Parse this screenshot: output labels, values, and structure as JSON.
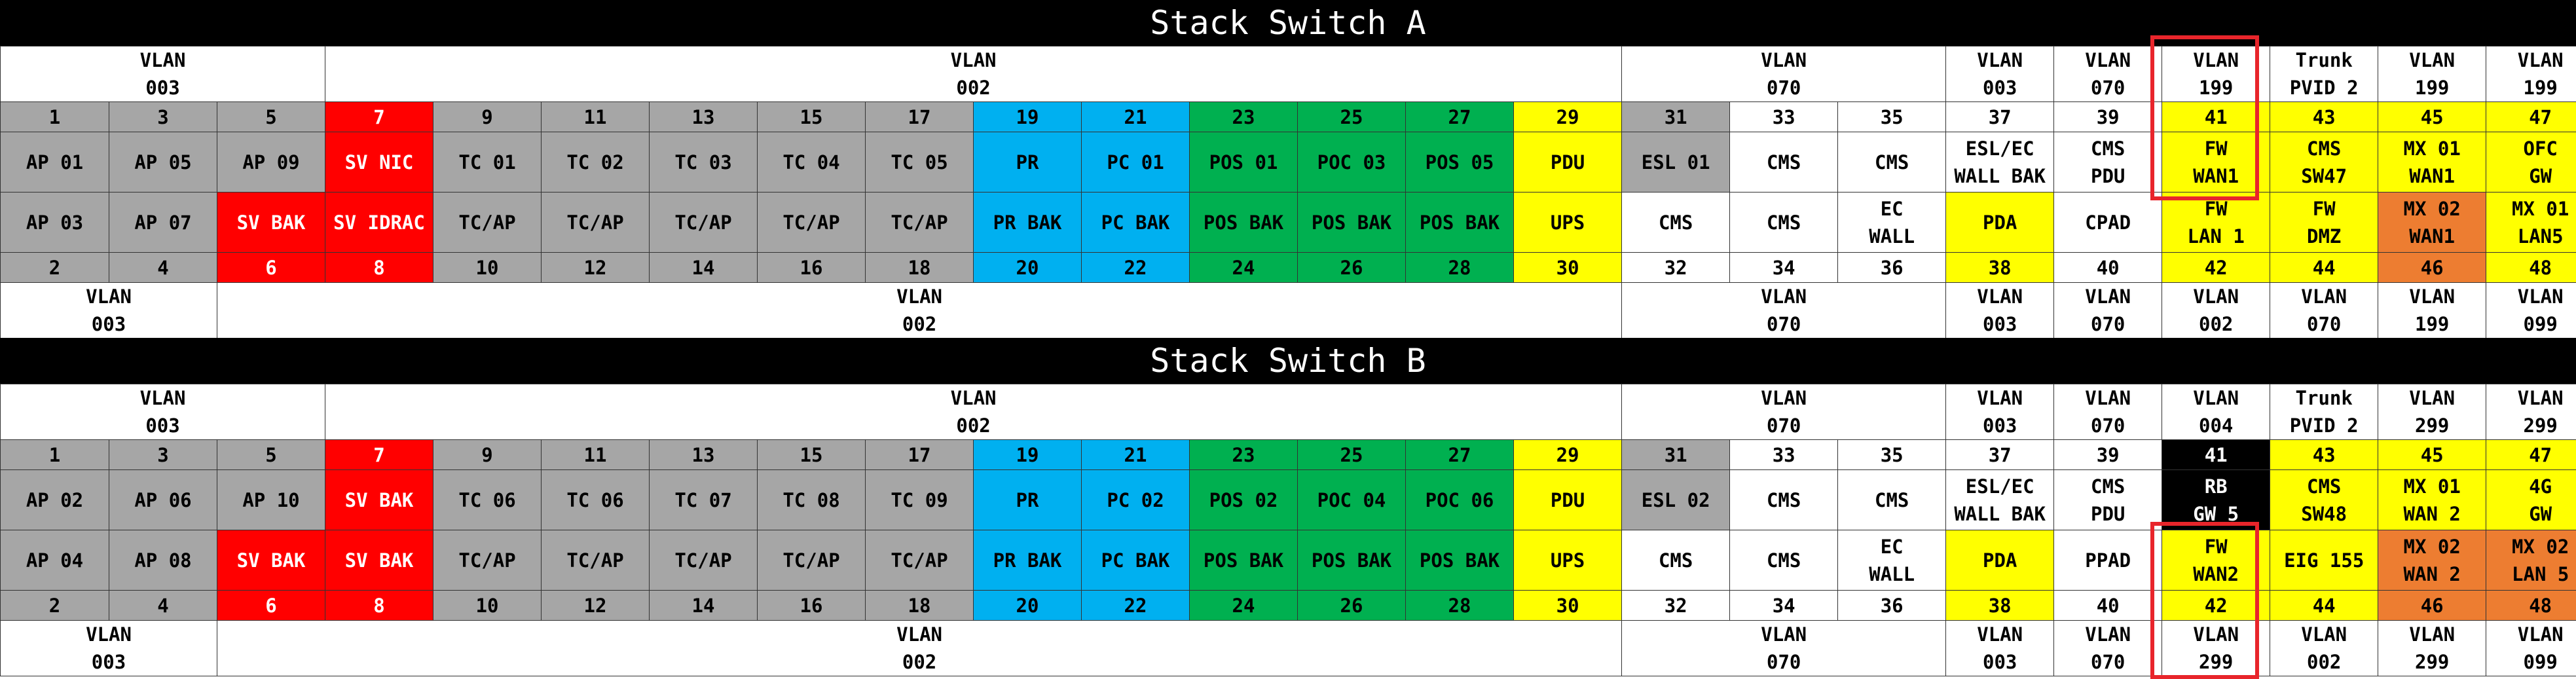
{
  "colors": {
    "gray": "#a6a6a6",
    "red": "#ff0000",
    "blue": "#00b0f0",
    "green": "#00b050",
    "yellow": "#ffff00",
    "orange": "#ed7d31",
    "white": "#ffffff",
    "black": "#000000",
    "highlight": "#e8252b"
  },
  "switches": [
    {
      "title": "Stack Switch A",
      "top_vlans": [
        {
          "span": 3,
          "text": "VLAN\n003"
        },
        {
          "span": 12,
          "text": "VLAN\n002"
        },
        {
          "span": 3,
          "text": "VLAN\n070"
        },
        {
          "span": 1,
          "text": "VLAN\n003"
        },
        {
          "span": 1,
          "text": "VLAN\n070"
        },
        {
          "span": 1,
          "text": "VLAN\n199"
        },
        {
          "span": 1,
          "text": "Trunk\nPVID 2"
        },
        {
          "span": 1,
          "text": "VLAN\n199"
        },
        {
          "span": 1,
          "text": "VLAN\n199"
        }
      ],
      "odd_ports": [
        {
          "t": "1",
          "c": "gray"
        },
        {
          "t": "3",
          "c": "gray"
        },
        {
          "t": "5",
          "c": "gray"
        },
        {
          "t": "7",
          "c": "red"
        },
        {
          "t": "9",
          "c": "gray"
        },
        {
          "t": "11",
          "c": "gray"
        },
        {
          "t": "13",
          "c": "gray"
        },
        {
          "t": "15",
          "c": "gray"
        },
        {
          "t": "17",
          "c": "gray"
        },
        {
          "t": "19",
          "c": "blue"
        },
        {
          "t": "21",
          "c": "blue"
        },
        {
          "t": "23",
          "c": "green"
        },
        {
          "t": "25",
          "c": "green"
        },
        {
          "t": "27",
          "c": "green"
        },
        {
          "t": "29",
          "c": "yellow"
        },
        {
          "t": "31",
          "c": "gray"
        },
        {
          "t": "33",
          "c": "white"
        },
        {
          "t": "35",
          "c": "white"
        },
        {
          "t": "37",
          "c": "white"
        },
        {
          "t": "39",
          "c": "white"
        },
        {
          "t": "41",
          "c": "yellow"
        },
        {
          "t": "43",
          "c": "yellow"
        },
        {
          "t": "45",
          "c": "yellow"
        },
        {
          "t": "47",
          "c": "yellow"
        }
      ],
      "odd_labels": [
        {
          "t": "AP 01",
          "c": "gray"
        },
        {
          "t": "AP 05",
          "c": "gray"
        },
        {
          "t": "AP 09",
          "c": "gray"
        },
        {
          "t": "SV NIC",
          "c": "red"
        },
        {
          "t": "TC 01",
          "c": "gray"
        },
        {
          "t": "TC 02",
          "c": "gray"
        },
        {
          "t": "TC 03",
          "c": "gray"
        },
        {
          "t": "TC 04",
          "c": "gray"
        },
        {
          "t": "TC 05",
          "c": "gray"
        },
        {
          "t": "PR",
          "c": "blue"
        },
        {
          "t": "PC 01",
          "c": "blue"
        },
        {
          "t": "POS 01",
          "c": "green"
        },
        {
          "t": "POC 03",
          "c": "green"
        },
        {
          "t": "POS 05",
          "c": "green"
        },
        {
          "t": "PDU",
          "c": "yellow"
        },
        {
          "t": "ESL 01",
          "c": "gray"
        },
        {
          "t": "CMS",
          "c": "white"
        },
        {
          "t": "CMS",
          "c": "white"
        },
        {
          "t": "ESL/EC\nWALL BAK",
          "c": "white"
        },
        {
          "t": "CMS\nPDU",
          "c": "white"
        },
        {
          "t": "FW\nWAN1",
          "c": "yellow"
        },
        {
          "t": "CMS\nSW47",
          "c": "yellow"
        },
        {
          "t": "MX 01\nWAN1",
          "c": "yellow"
        },
        {
          "t": "OFC\nGW",
          "c": "yellow"
        }
      ],
      "even_labels": [
        {
          "t": "AP 03",
          "c": "gray"
        },
        {
          "t": "AP 07",
          "c": "gray"
        },
        {
          "t": "SV BAK",
          "c": "red"
        },
        {
          "t": "SV IDRAC",
          "c": "red"
        },
        {
          "t": "TC/AP",
          "c": "gray"
        },
        {
          "t": "TC/AP",
          "c": "gray"
        },
        {
          "t": "TC/AP",
          "c": "gray"
        },
        {
          "t": "TC/AP",
          "c": "gray"
        },
        {
          "t": "TC/AP",
          "c": "gray"
        },
        {
          "t": "PR BAK",
          "c": "blue"
        },
        {
          "t": "PC BAK",
          "c": "blue"
        },
        {
          "t": "POS BAK",
          "c": "green"
        },
        {
          "t": "POS BAK",
          "c": "green"
        },
        {
          "t": "POS BAK",
          "c": "green"
        },
        {
          "t": "UPS",
          "c": "yellow"
        },
        {
          "t": "CMS",
          "c": "white"
        },
        {
          "t": "CMS",
          "c": "white"
        },
        {
          "t": "EC\nWALL",
          "c": "white"
        },
        {
          "t": "PDA",
          "c": "yellow"
        },
        {
          "t": "CPAD",
          "c": "white"
        },
        {
          "t": "FW\nLAN 1",
          "c": "yellow"
        },
        {
          "t": "FW\nDMZ",
          "c": "yellow"
        },
        {
          "t": "MX 02\nWAN1",
          "c": "orange"
        },
        {
          "t": "MX 01\nLAN5",
          "c": "yellow"
        }
      ],
      "even_ports": [
        {
          "t": "2",
          "c": "gray"
        },
        {
          "t": "4",
          "c": "gray"
        },
        {
          "t": "6",
          "c": "red"
        },
        {
          "t": "8",
          "c": "red"
        },
        {
          "t": "10",
          "c": "gray"
        },
        {
          "t": "12",
          "c": "gray"
        },
        {
          "t": "14",
          "c": "gray"
        },
        {
          "t": "16",
          "c": "gray"
        },
        {
          "t": "18",
          "c": "gray"
        },
        {
          "t": "20",
          "c": "blue"
        },
        {
          "t": "22",
          "c": "blue"
        },
        {
          "t": "24",
          "c": "green"
        },
        {
          "t": "26",
          "c": "green"
        },
        {
          "t": "28",
          "c": "green"
        },
        {
          "t": "30",
          "c": "yellow"
        },
        {
          "t": "32",
          "c": "white"
        },
        {
          "t": "34",
          "c": "white"
        },
        {
          "t": "36",
          "c": "white"
        },
        {
          "t": "38",
          "c": "yellow"
        },
        {
          "t": "40",
          "c": "white"
        },
        {
          "t": "42",
          "c": "yellow"
        },
        {
          "t": "44",
          "c": "yellow"
        },
        {
          "t": "46",
          "c": "orange"
        },
        {
          "t": "48",
          "c": "yellow"
        }
      ],
      "bottom_vlans": [
        {
          "span": 2,
          "text": "VLAN\n003"
        },
        {
          "span": 13,
          "text": "VLAN\n002"
        },
        {
          "span": 3,
          "text": "VLAN\n070"
        },
        {
          "span": 1,
          "text": "VLAN\n003"
        },
        {
          "span": 1,
          "text": "VLAN\n070"
        },
        {
          "span": 1,
          "text": "VLAN\n002"
        },
        {
          "span": 1,
          "text": "VLAN\n070"
        },
        {
          "span": 1,
          "text": "VLAN\n199"
        },
        {
          "span": 1,
          "text": "VLAN\n099"
        }
      ]
    },
    {
      "title": "Stack Switch B",
      "top_vlans": [
        {
          "span": 3,
          "text": "VLAN\n003"
        },
        {
          "span": 12,
          "text": "VLAN\n002"
        },
        {
          "span": 3,
          "text": "VLAN\n070"
        },
        {
          "span": 1,
          "text": "VLAN\n003"
        },
        {
          "span": 1,
          "text": "VLAN\n070"
        },
        {
          "span": 1,
          "text": "VLAN\n004"
        },
        {
          "span": 1,
          "text": "Trunk\nPVID 2"
        },
        {
          "span": 1,
          "text": "VLAN\n299"
        },
        {
          "span": 1,
          "text": "VLAN\n299"
        }
      ],
      "odd_ports": [
        {
          "t": "1",
          "c": "gray"
        },
        {
          "t": "3",
          "c": "gray"
        },
        {
          "t": "5",
          "c": "gray"
        },
        {
          "t": "7",
          "c": "red"
        },
        {
          "t": "9",
          "c": "gray"
        },
        {
          "t": "11",
          "c": "gray"
        },
        {
          "t": "13",
          "c": "gray"
        },
        {
          "t": "15",
          "c": "gray"
        },
        {
          "t": "17",
          "c": "gray"
        },
        {
          "t": "19",
          "c": "blue"
        },
        {
          "t": "21",
          "c": "blue"
        },
        {
          "t": "23",
          "c": "green"
        },
        {
          "t": "25",
          "c": "green"
        },
        {
          "t": "27",
          "c": "green"
        },
        {
          "t": "29",
          "c": "yellow"
        },
        {
          "t": "31",
          "c": "gray"
        },
        {
          "t": "33",
          "c": "white"
        },
        {
          "t": "35",
          "c": "white"
        },
        {
          "t": "37",
          "c": "white"
        },
        {
          "t": "39",
          "c": "white"
        },
        {
          "t": "41",
          "c": "black"
        },
        {
          "t": "43",
          "c": "yellow"
        },
        {
          "t": "45",
          "c": "yellow"
        },
        {
          "t": "47",
          "c": "yellow"
        }
      ],
      "odd_labels": [
        {
          "t": "AP 02",
          "c": "gray"
        },
        {
          "t": "AP 06",
          "c": "gray"
        },
        {
          "t": "AP 10",
          "c": "gray"
        },
        {
          "t": "SV BAK",
          "c": "red"
        },
        {
          "t": "TC 06",
          "c": "gray"
        },
        {
          "t": "TC 06",
          "c": "gray"
        },
        {
          "t": "TC 07",
          "c": "gray"
        },
        {
          "t": "TC 08",
          "c": "gray"
        },
        {
          "t": "TC 09",
          "c": "gray"
        },
        {
          "t": "PR",
          "c": "blue"
        },
        {
          "t": "PC 02",
          "c": "blue"
        },
        {
          "t": "POS 02",
          "c": "green"
        },
        {
          "t": "POC 04",
          "c": "green"
        },
        {
          "t": "POC 06",
          "c": "green"
        },
        {
          "t": "PDU",
          "c": "yellow"
        },
        {
          "t": "ESL 02",
          "c": "gray"
        },
        {
          "t": "CMS",
          "c": "white"
        },
        {
          "t": "CMS",
          "c": "white"
        },
        {
          "t": "ESL/EC\nWALL BAK",
          "c": "white"
        },
        {
          "t": "CMS\nPDU",
          "c": "white"
        },
        {
          "t": "RB\nGW 5",
          "c": "black"
        },
        {
          "t": "CMS\nSW48",
          "c": "yellow"
        },
        {
          "t": "MX 01\nWAN 2",
          "c": "yellow"
        },
        {
          "t": "4G\nGW",
          "c": "yellow"
        }
      ],
      "even_labels": [
        {
          "t": "AP 04",
          "c": "gray"
        },
        {
          "t": "AP 08",
          "c": "gray"
        },
        {
          "t": "SV BAK",
          "c": "red"
        },
        {
          "t": "SV BAK",
          "c": "red"
        },
        {
          "t": "TC/AP",
          "c": "gray"
        },
        {
          "t": "TC/AP",
          "c": "gray"
        },
        {
          "t": "TC/AP",
          "c": "gray"
        },
        {
          "t": "TC/AP",
          "c": "gray"
        },
        {
          "t": "TC/AP",
          "c": "gray"
        },
        {
          "t": "PR BAK",
          "c": "blue"
        },
        {
          "t": "PC BAK",
          "c": "blue"
        },
        {
          "t": "POS BAK",
          "c": "green"
        },
        {
          "t": "POS BAK",
          "c": "green"
        },
        {
          "t": "POS BAK",
          "c": "green"
        },
        {
          "t": "UPS",
          "c": "yellow"
        },
        {
          "t": "CMS",
          "c": "white"
        },
        {
          "t": "CMS",
          "c": "white"
        },
        {
          "t": "EC\nWALL",
          "c": "white"
        },
        {
          "t": "PDA",
          "c": "yellow"
        },
        {
          "t": "PPAD",
          "c": "white"
        },
        {
          "t": "FW\nWAN2",
          "c": "yellow"
        },
        {
          "t": "EIG 155",
          "c": "yellow"
        },
        {
          "t": "MX 02\nWAN 2",
          "c": "orange"
        },
        {
          "t": "MX 02\nLAN 5",
          "c": "orange"
        }
      ],
      "even_ports": [
        {
          "t": "2",
          "c": "gray"
        },
        {
          "t": "4",
          "c": "gray"
        },
        {
          "t": "6",
          "c": "red"
        },
        {
          "t": "8",
          "c": "red"
        },
        {
          "t": "10",
          "c": "gray"
        },
        {
          "t": "12",
          "c": "gray"
        },
        {
          "t": "14",
          "c": "gray"
        },
        {
          "t": "16",
          "c": "gray"
        },
        {
          "t": "18",
          "c": "gray"
        },
        {
          "t": "20",
          "c": "blue"
        },
        {
          "t": "22",
          "c": "blue"
        },
        {
          "t": "24",
          "c": "green"
        },
        {
          "t": "26",
          "c": "green"
        },
        {
          "t": "28",
          "c": "green"
        },
        {
          "t": "30",
          "c": "yellow"
        },
        {
          "t": "32",
          "c": "white"
        },
        {
          "t": "34",
          "c": "white"
        },
        {
          "t": "36",
          "c": "white"
        },
        {
          "t": "38",
          "c": "yellow"
        },
        {
          "t": "40",
          "c": "white"
        },
        {
          "t": "42",
          "c": "yellow"
        },
        {
          "t": "44",
          "c": "yellow"
        },
        {
          "t": "46",
          "c": "orange"
        },
        {
          "t": "48",
          "c": "orange"
        }
      ],
      "bottom_vlans": [
        {
          "span": 2,
          "text": "VLAN\n003"
        },
        {
          "span": 13,
          "text": "VLAN\n002"
        },
        {
          "span": 3,
          "text": "VLAN\n070"
        },
        {
          "span": 1,
          "text": "VLAN\n003"
        },
        {
          "span": 1,
          "text": "VLAN\n070"
        },
        {
          "span": 1,
          "text": "VLAN\n299"
        },
        {
          "span": 1,
          "text": "VLAN\n002"
        },
        {
          "span": 1,
          "text": "VLAN\n299"
        },
        {
          "span": 1,
          "text": "VLAN\n099"
        }
      ]
    }
  ]
}
